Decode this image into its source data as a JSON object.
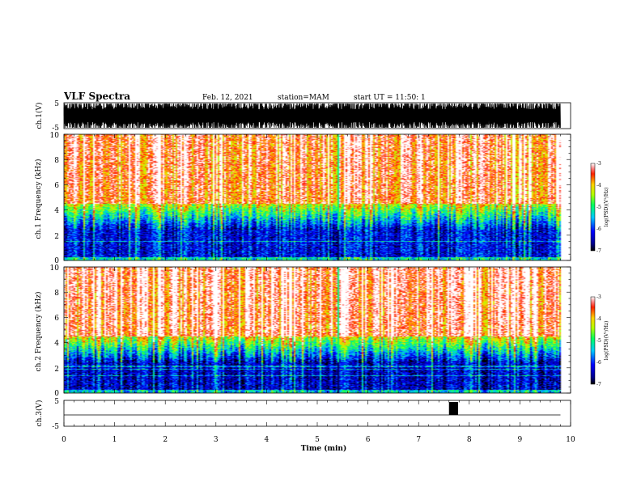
{
  "header": {
    "title": "VLF Spectra",
    "date": "Feb. 12, 2021",
    "station": "station=MAM",
    "start": "start UT =  11:50: 1"
  },
  "colors": {
    "spectrogram_scale": [
      "#000080",
      "#0000ff",
      "#00bfff",
      "#00ff80",
      "#c0ff00",
      "#ffd000",
      "#ff3000",
      "#ff2020"
    ]
  },
  "chart_data": [
    {
      "type": "line",
      "name": "ch1-waveform",
      "ylabel": "ch.1(V)",
      "ylim": [
        -5,
        5
      ],
      "yticks": [
        "5",
        "-5"
      ],
      "xlim": [
        0,
        10
      ],
      "x": [
        0,
        0.5,
        1,
        1.5,
        2,
        2.5,
        3,
        3.5,
        4,
        4.5,
        5,
        5.5,
        6,
        6.5,
        7,
        7.5,
        8,
        8.5,
        9,
        9.5,
        9.8
      ],
      "y": [
        4.8,
        -4.8,
        4.8,
        -4.8,
        4.8,
        -4.8,
        4.8,
        -4.8,
        4.8,
        -4.8,
        4.8,
        -4.8,
        4.8,
        -4.8,
        4.8,
        -4.8,
        4.8,
        -4.8,
        4.8,
        -4.8,
        4.8
      ]
    },
    {
      "type": "heatmap",
      "name": "ch1-spectrogram",
      "ylabel": "ch.1 Frequency (kHz)",
      "ylim": [
        0,
        10
      ],
      "yticks": [
        "0",
        "2",
        "4",
        "6",
        "8",
        "10"
      ],
      "xlim": [
        0,
        10
      ],
      "data_end_min": 9.8,
      "gap_at_min": 5.4,
      "colorbar": {
        "label": "log(PSD)(V²/Hz)",
        "range": [
          -7,
          -3
        ],
        "ticks": [
          "-3",
          "-4",
          "-5",
          "-6",
          "-7"
        ]
      },
      "summary": {
        "low_band_khz": [
          0,
          2.5
        ],
        "low_band_log_psd": -6.2,
        "high_band_khz": [
          4,
          10
        ],
        "high_band_log_psd": -3.5
      }
    },
    {
      "type": "heatmap",
      "name": "ch2-spectrogram",
      "ylabel": "ch.2 Frequency (kHz)",
      "ylim": [
        0,
        10
      ],
      "yticks": [
        "0",
        "2",
        "4",
        "6",
        "8",
        "10"
      ],
      "xlim": [
        0,
        10
      ],
      "data_end_min": 9.8,
      "gap_at_min": 5.4,
      "colorbar": {
        "label": "log(PSD)(V²/Hz)",
        "range": [
          -7,
          -3
        ],
        "ticks": [
          "-3",
          "-4",
          "-5",
          "-6",
          "-7"
        ]
      },
      "summary": {
        "low_band_khz": [
          0,
          2.5
        ],
        "low_band_log_psd": -6.4,
        "high_band_khz": [
          4,
          10
        ],
        "high_band_log_psd": -3.4
      }
    },
    {
      "type": "line",
      "name": "ch3-signal",
      "ylabel": "ch.3(V)",
      "ylim": [
        -5,
        5
      ],
      "yticks": [
        "5",
        "-5"
      ],
      "xlim": [
        0,
        10
      ],
      "xlabel": "Time (min)",
      "xticks": [
        "0",
        "1",
        "2",
        "3",
        "4",
        "5",
        "6",
        "7",
        "8",
        "9",
        "10"
      ],
      "x": [
        0,
        7.6,
        7.6,
        7.78,
        7.78,
        9.8
      ],
      "y": [
        0,
        0,
        5,
        5,
        0,
        0
      ]
    }
  ]
}
